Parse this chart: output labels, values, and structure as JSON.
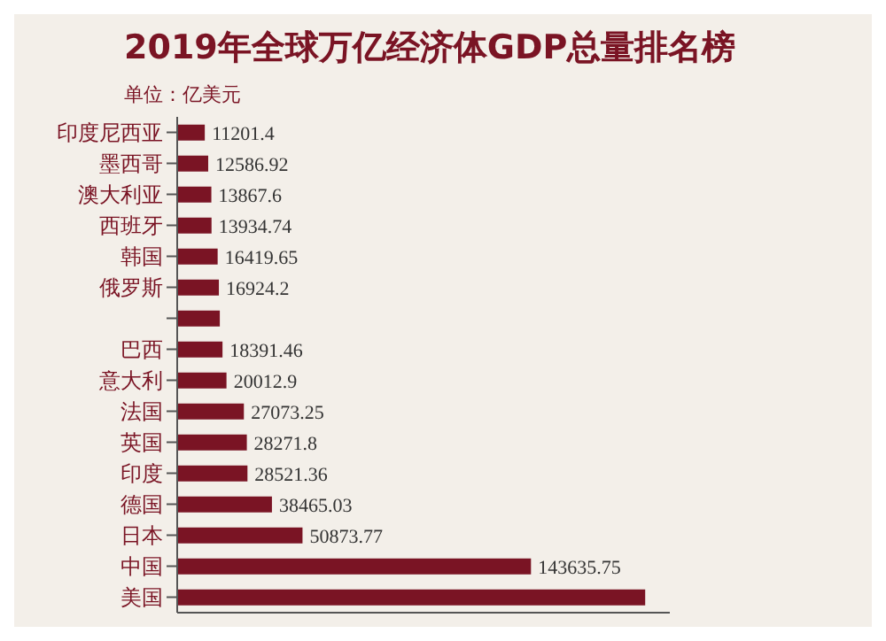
{
  "chart_data": {
    "type": "bar",
    "orientation": "horizontal",
    "title": "2019年全球万亿经济体GDP总量排名榜",
    "subtitle": "单位：亿美元",
    "categories": [
      "印度尼西亚",
      "墨西哥",
      "澳大利亚",
      "西班牙",
      "韩国",
      "俄罗斯",
      null,
      "巴西",
      "意大利",
      "法国",
      "英国",
      "印度",
      "德国",
      "日本",
      "中国",
      "美国"
    ],
    "values": [
      11201.4,
      12586.92,
      13867.6,
      13934.74,
      16419.65,
      16924.2,
      17300,
      18391.46,
      20012.9,
      27073.25,
      28271.8,
      28521.36,
      38465.03,
      50873.77,
      143635.75,
      190000
    ],
    "value_labels": [
      "11201.4",
      "12586.92",
      "13867.6",
      "13934.74",
      "16419.65",
      "16924.2",
      null,
      "18391.46",
      "20012.9",
      "27073.25",
      "28271.8",
      "28521.36",
      "38465.03",
      "50873.77",
      "143635.75",
      null
    ],
    "color": "#7a1424",
    "xlim": [
      0,
      200000
    ],
    "tick_labels": "y",
    "grid": false,
    "legend": false
  }
}
